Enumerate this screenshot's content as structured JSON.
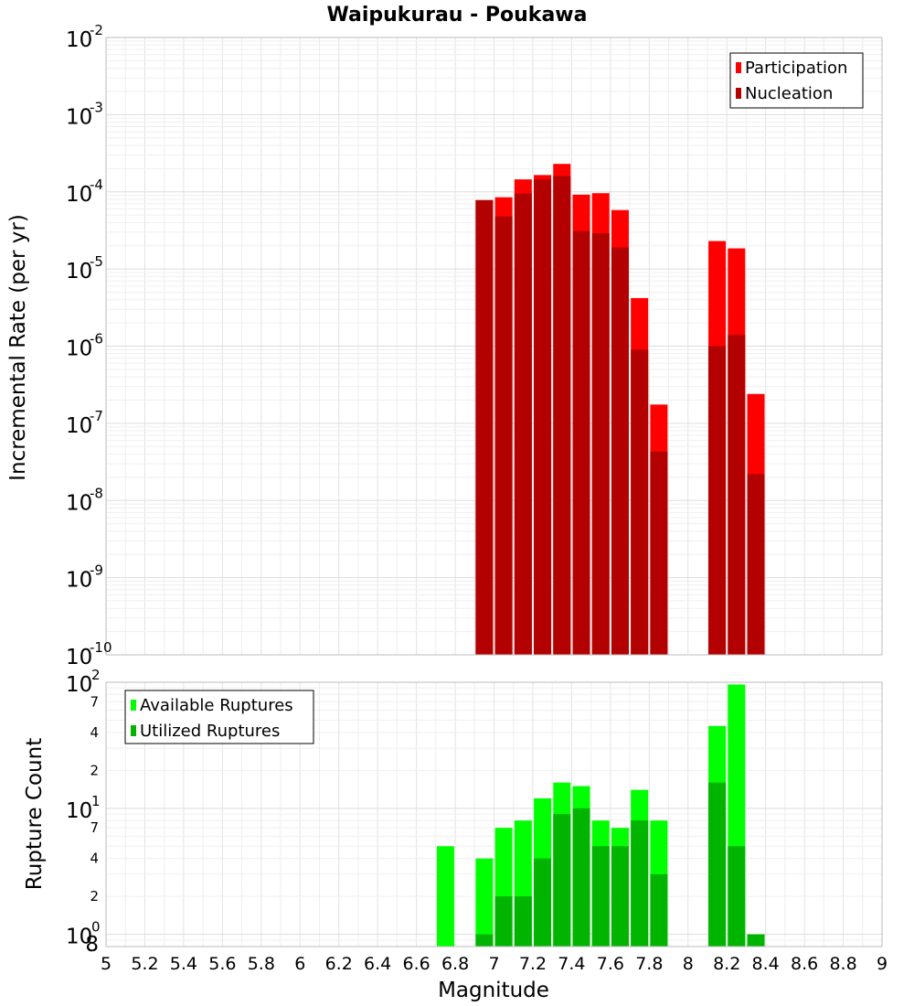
{
  "chart_data": [
    {
      "type": "bar",
      "title": "Waipukurau - Poukawa",
      "xlabel": "Magnitude",
      "ylabel": "Incremental Rate (per yr)",
      "xlim": [
        5,
        9
      ],
      "yscale": "log",
      "ylim": [
        1e-10,
        0.01
      ],
      "y_tick_labels": [
        {
          "base": "10",
          "exp": "-10",
          "value": 1e-10
        },
        {
          "base": "10",
          "exp": "-9",
          "value": 1e-09
        },
        {
          "base": "10",
          "exp": "-8",
          "value": 1e-08
        },
        {
          "base": "10",
          "exp": "-7",
          "value": 1e-07
        },
        {
          "base": "10",
          "exp": "-6",
          "value": 1e-06
        },
        {
          "base": "10",
          "exp": "-5",
          "value": 1e-05
        },
        {
          "base": "10",
          "exp": "-4",
          "value": 0.0001
        },
        {
          "base": "10",
          "exp": "-3",
          "value": 0.001
        },
        {
          "base": "10",
          "exp": "-2",
          "value": 0.01
        }
      ],
      "legend": {
        "position": "top-right",
        "entries": [
          "Participation",
          "Nucleation"
        ]
      },
      "x": [
        6.95,
        7.05,
        7.15,
        7.25,
        7.35,
        7.45,
        7.55,
        7.65,
        7.75,
        7.85,
        8.15,
        8.25,
        8.35
      ],
      "series": [
        {
          "name": "Participation",
          "color": "#ff0000",
          "values": [
            7.8e-05,
            8.5e-05,
            0.000145,
            0.000165,
            0.00023,
            9.2e-05,
            9.6e-05,
            5.8e-05,
            4.2e-06,
            1.75e-07,
            2.3e-05,
            1.85e-05,
            2.4e-07
          ]
        },
        {
          "name": "Nucleation",
          "color": "#b30000",
          "values": [
            7.8e-05,
            4.8e-05,
            9.5e-05,
            0.000145,
            0.00016,
            3.1e-05,
            2.9e-05,
            1.9e-05,
            9e-07,
            4.3e-08,
            1e-06,
            1.4e-06,
            2.2e-08
          ]
        }
      ]
    },
    {
      "type": "bar",
      "xlabel": "Magnitude",
      "ylabel": "Rupture Count",
      "xlim": [
        5,
        9
      ],
      "yscale": "log",
      "ylim": [
        0.8,
        100
      ],
      "x_tick_labels": [
        "5",
        "5.2",
        "5.4",
        "5.6",
        "5.8",
        "6",
        "6.2",
        "6.4",
        "6.6",
        "6.8",
        "7",
        "7.2",
        "7.4",
        "7.6",
        "7.8",
        "8",
        "8.2",
        "8.4",
        "8.6",
        "8.8",
        "9"
      ],
      "y_major_ticks": [
        {
          "base": "10",
          "exp": "0",
          "value": 1
        },
        {
          "base": "10",
          "exp": "1",
          "value": 10
        },
        {
          "base": "10",
          "exp": "2",
          "value": 100
        }
      ],
      "y_minor_ticks": [
        {
          "label": "8",
          "value": 0.8
        },
        {
          "label": "2",
          "value": 2
        },
        {
          "label": "4",
          "value": 4
        },
        {
          "label": "7",
          "value": 7
        },
        {
          "label": "2",
          "value": 20
        },
        {
          "label": "4",
          "value": 40
        },
        {
          "label": "7",
          "value": 70
        }
      ],
      "legend": {
        "position": "top-left",
        "entries": [
          "Available Ruptures",
          "Utilized Ruptures"
        ]
      },
      "x": [
        6.75,
        6.95,
        7.05,
        7.15,
        7.25,
        7.35,
        7.45,
        7.55,
        7.65,
        7.75,
        7.85,
        8.15,
        8.25,
        8.35
      ],
      "series": [
        {
          "name": "Available Ruptures",
          "color": "#00ff00",
          "values": [
            5,
            4,
            7,
            8,
            12,
            16,
            15,
            8,
            7,
            14,
            8,
            45,
            96,
            1
          ]
        },
        {
          "name": "Utilized Ruptures",
          "color": "#00b400",
          "values": [
            0,
            1,
            2,
            2,
            4,
            9,
            10,
            5,
            5,
            8,
            3,
            16,
            5,
            1
          ]
        }
      ]
    }
  ]
}
